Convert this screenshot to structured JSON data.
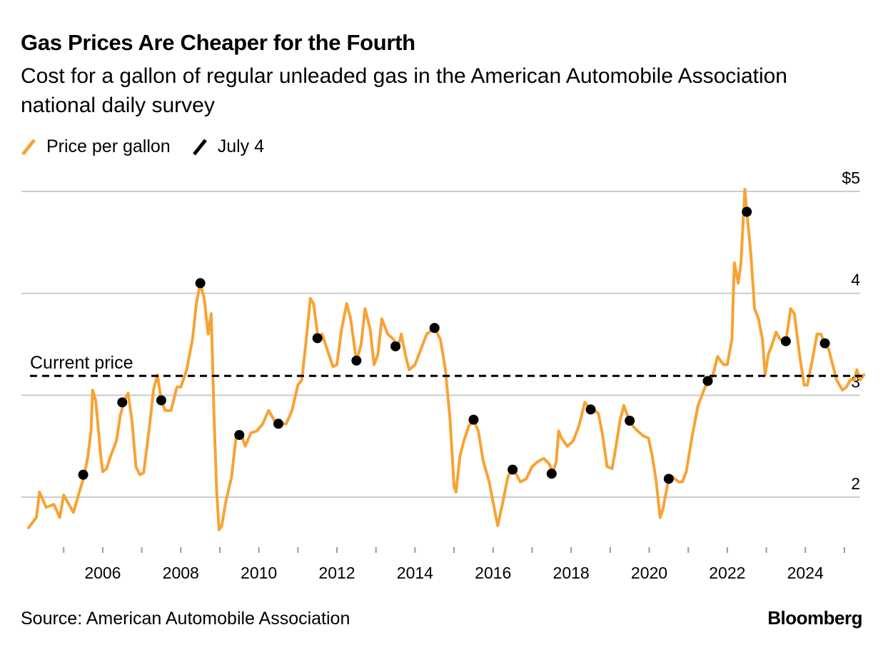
{
  "title": "Gas Prices Are Cheaper for the Fourth",
  "subtitle": "Cost for a gallon of regular unleaded gas in the American Automobile Association national daily survey",
  "source": "Source: American Automobile Association",
  "brand": "Bloomberg",
  "colors": {
    "price_line": "#f7a334",
    "july4": "#000000",
    "grid": "#cccccc",
    "current": "#000000"
  },
  "chart_data": {
    "type": "line",
    "title": "Gas Prices Are Cheaper for the Fourth",
    "legend": [
      "Price per gallon",
      "July 4"
    ],
    "legend_position": "top-left",
    "grid": true,
    "y_axis_position": "right",
    "ylim": [
      1.6,
      5.05
    ],
    "xlim": [
      2004.1,
      2025.55
    ],
    "y_ticks": [
      {
        "value": 2,
        "label": "2"
      },
      {
        "value": 3,
        "label": "3"
      },
      {
        "value": 4,
        "label": "4"
      },
      {
        "value": 5,
        "label": "$5"
      }
    ],
    "x_ticks": [
      2005,
      2006,
      2007,
      2008,
      2009,
      2010,
      2011,
      2012,
      2013,
      2014,
      2015,
      2016,
      2017,
      2018,
      2019,
      2020,
      2021,
      2022,
      2023,
      2024,
      2025
    ],
    "x_tick_labels": [
      "2006",
      "2008",
      "2010",
      "2012",
      "2014",
      "2016",
      "2018",
      "2020",
      "2022",
      "2024"
    ],
    "x_label_years": [
      2006,
      2008,
      2010,
      2012,
      2014,
      2016,
      2018,
      2020,
      2022,
      2024
    ],
    "current_price": {
      "label": "Current price",
      "value": 3.19
    },
    "series": [
      {
        "name": "Price per gallon",
        "points": [
          [
            2004.1,
            1.7
          ],
          [
            2004.3,
            1.8
          ],
          [
            2004.38,
            2.05
          ],
          [
            2004.55,
            1.9
          ],
          [
            2004.75,
            1.93
          ],
          [
            2004.9,
            1.8
          ],
          [
            2005.0,
            2.02
          ],
          [
            2005.25,
            1.85
          ],
          [
            2005.4,
            2.05
          ],
          [
            2005.52,
            2.2
          ],
          [
            2005.62,
            2.4
          ],
          [
            2005.7,
            2.65
          ],
          [
            2005.74,
            3.05
          ],
          [
            2005.82,
            2.95
          ],
          [
            2005.88,
            2.7
          ],
          [
            2005.95,
            2.4
          ],
          [
            2006.0,
            2.25
          ],
          [
            2006.1,
            2.28
          ],
          [
            2006.2,
            2.4
          ],
          [
            2006.35,
            2.55
          ],
          [
            2006.45,
            2.8
          ],
          [
            2006.55,
            2.95
          ],
          [
            2006.65,
            3.02
          ],
          [
            2006.75,
            2.75
          ],
          [
            2006.85,
            2.3
          ],
          [
            2006.95,
            2.22
          ],
          [
            2007.05,
            2.24
          ],
          [
            2007.2,
            2.7
          ],
          [
            2007.3,
            3.05
          ],
          [
            2007.4,
            3.2
          ],
          [
            2007.5,
            2.95
          ],
          [
            2007.6,
            2.85
          ],
          [
            2007.75,
            2.85
          ],
          [
            2007.9,
            3.08
          ],
          [
            2008.0,
            3.08
          ],
          [
            2008.15,
            3.25
          ],
          [
            2008.3,
            3.55
          ],
          [
            2008.4,
            3.9
          ],
          [
            2008.5,
            4.1
          ],
          [
            2008.6,
            3.95
          ],
          [
            2008.7,
            3.6
          ],
          [
            2008.78,
            3.8
          ],
          [
            2008.85,
            2.8
          ],
          [
            2008.92,
            2.05
          ],
          [
            2008.98,
            1.68
          ],
          [
            2009.05,
            1.72
          ],
          [
            2009.15,
            1.95
          ],
          [
            2009.3,
            2.2
          ],
          [
            2009.42,
            2.6
          ],
          [
            2009.55,
            2.62
          ],
          [
            2009.65,
            2.5
          ],
          [
            2009.8,
            2.63
          ],
          [
            2009.95,
            2.65
          ],
          [
            2010.1,
            2.72
          ],
          [
            2010.25,
            2.85
          ],
          [
            2010.4,
            2.75
          ],
          [
            2010.55,
            2.72
          ],
          [
            2010.7,
            2.72
          ],
          [
            2010.85,
            2.85
          ],
          [
            2011.0,
            3.1
          ],
          [
            2011.1,
            3.15
          ],
          [
            2011.2,
            3.5
          ],
          [
            2011.32,
            3.95
          ],
          [
            2011.4,
            3.9
          ],
          [
            2011.52,
            3.55
          ],
          [
            2011.62,
            3.6
          ],
          [
            2011.75,
            3.45
          ],
          [
            2011.9,
            3.28
          ],
          [
            2012.0,
            3.3
          ],
          [
            2012.12,
            3.65
          ],
          [
            2012.25,
            3.9
          ],
          [
            2012.35,
            3.75
          ],
          [
            2012.5,
            3.33
          ],
          [
            2012.62,
            3.5
          ],
          [
            2012.72,
            3.85
          ],
          [
            2012.85,
            3.65
          ],
          [
            2012.95,
            3.3
          ],
          [
            2013.05,
            3.4
          ],
          [
            2013.15,
            3.75
          ],
          [
            2013.3,
            3.6
          ],
          [
            2013.45,
            3.55
          ],
          [
            2013.55,
            3.45
          ],
          [
            2013.65,
            3.6
          ],
          [
            2013.75,
            3.4
          ],
          [
            2013.85,
            3.25
          ],
          [
            2014.0,
            3.3
          ],
          [
            2014.15,
            3.45
          ],
          [
            2014.3,
            3.6
          ],
          [
            2014.5,
            3.66
          ],
          [
            2014.65,
            3.55
          ],
          [
            2014.78,
            3.25
          ],
          [
            2014.9,
            2.75
          ],
          [
            2015.0,
            2.1
          ],
          [
            2015.05,
            2.05
          ],
          [
            2015.15,
            2.4
          ],
          [
            2015.25,
            2.55
          ],
          [
            2015.38,
            2.7
          ],
          [
            2015.5,
            2.76
          ],
          [
            2015.62,
            2.65
          ],
          [
            2015.75,
            2.35
          ],
          [
            2015.9,
            2.15
          ],
          [
            2016.05,
            1.85
          ],
          [
            2016.12,
            1.72
          ],
          [
            2016.25,
            1.95
          ],
          [
            2016.38,
            2.2
          ],
          [
            2016.5,
            2.28
          ],
          [
            2016.6,
            2.22
          ],
          [
            2016.7,
            2.15
          ],
          [
            2016.85,
            2.18
          ],
          [
            2017.0,
            2.3
          ],
          [
            2017.15,
            2.35
          ],
          [
            2017.3,
            2.38
          ],
          [
            2017.45,
            2.32
          ],
          [
            2017.52,
            2.23
          ],
          [
            2017.62,
            2.35
          ],
          [
            2017.68,
            2.65
          ],
          [
            2017.75,
            2.58
          ],
          [
            2017.9,
            2.5
          ],
          [
            2018.05,
            2.55
          ],
          [
            2018.2,
            2.7
          ],
          [
            2018.35,
            2.93
          ],
          [
            2018.5,
            2.86
          ],
          [
            2018.6,
            2.85
          ],
          [
            2018.7,
            2.82
          ],
          [
            2018.8,
            2.62
          ],
          [
            2018.92,
            2.3
          ],
          [
            2019.05,
            2.28
          ],
          [
            2019.15,
            2.5
          ],
          [
            2019.25,
            2.75
          ],
          [
            2019.35,
            2.9
          ],
          [
            2019.48,
            2.76
          ],
          [
            2019.58,
            2.7
          ],
          [
            2019.7,
            2.65
          ],
          [
            2019.85,
            2.6
          ],
          [
            2019.98,
            2.58
          ],
          [
            2020.08,
            2.4
          ],
          [
            2020.18,
            2.15
          ],
          [
            2020.28,
            1.8
          ],
          [
            2020.35,
            1.88
          ],
          [
            2020.5,
            2.18
          ],
          [
            2020.6,
            2.2
          ],
          [
            2020.75,
            2.15
          ],
          [
            2020.85,
            2.15
          ],
          [
            2020.95,
            2.25
          ],
          [
            2021.1,
            2.6
          ],
          [
            2021.25,
            2.9
          ],
          [
            2021.4,
            3.05
          ],
          [
            2021.5,
            3.14
          ],
          [
            2021.62,
            3.18
          ],
          [
            2021.75,
            3.38
          ],
          [
            2021.9,
            3.3
          ],
          [
            2022.0,
            3.3
          ],
          [
            2022.12,
            3.55
          ],
          [
            2022.18,
            4.3
          ],
          [
            2022.28,
            4.1
          ],
          [
            2022.35,
            4.3
          ],
          [
            2022.45,
            5.02
          ],
          [
            2022.5,
            4.8
          ],
          [
            2022.6,
            4.4
          ],
          [
            2022.7,
            3.85
          ],
          [
            2022.8,
            3.75
          ],
          [
            2022.9,
            3.55
          ],
          [
            2022.97,
            3.2
          ],
          [
            2023.05,
            3.4
          ],
          [
            2023.15,
            3.5
          ],
          [
            2023.25,
            3.62
          ],
          [
            2023.35,
            3.55
          ],
          [
            2023.5,
            3.52
          ],
          [
            2023.62,
            3.85
          ],
          [
            2023.72,
            3.8
          ],
          [
            2023.85,
            3.4
          ],
          [
            2023.97,
            3.1
          ],
          [
            2024.05,
            3.1
          ],
          [
            2024.18,
            3.35
          ],
          [
            2024.3,
            3.6
          ],
          [
            2024.4,
            3.6
          ],
          [
            2024.5,
            3.5
          ],
          [
            2024.6,
            3.45
          ],
          [
            2024.7,
            3.3
          ],
          [
            2024.8,
            3.15
          ],
          [
            2024.95,
            3.05
          ],
          [
            2025.05,
            3.08
          ],
          [
            2025.15,
            3.15
          ],
          [
            2025.25,
            3.15
          ],
          [
            2025.32,
            3.25
          ],
          [
            2025.4,
            3.15
          ],
          [
            2025.5,
            3.2
          ]
        ]
      },
      {
        "name": "July 4",
        "points": [
          [
            2005.5,
            2.22
          ],
          [
            2006.5,
            2.93
          ],
          [
            2007.5,
            2.95
          ],
          [
            2008.5,
            4.1
          ],
          [
            2009.5,
            2.61
          ],
          [
            2010.5,
            2.72
          ],
          [
            2011.5,
            3.56
          ],
          [
            2012.5,
            3.34
          ],
          [
            2013.5,
            3.48
          ],
          [
            2014.5,
            3.66
          ],
          [
            2015.5,
            2.76
          ],
          [
            2016.5,
            2.27
          ],
          [
            2017.5,
            2.23
          ],
          [
            2018.5,
            2.86
          ],
          [
            2019.5,
            2.75
          ],
          [
            2020.5,
            2.18
          ],
          [
            2021.5,
            3.14
          ],
          [
            2022.5,
            4.8
          ],
          [
            2023.5,
            3.53
          ],
          [
            2024.5,
            3.51
          ]
        ]
      }
    ]
  }
}
